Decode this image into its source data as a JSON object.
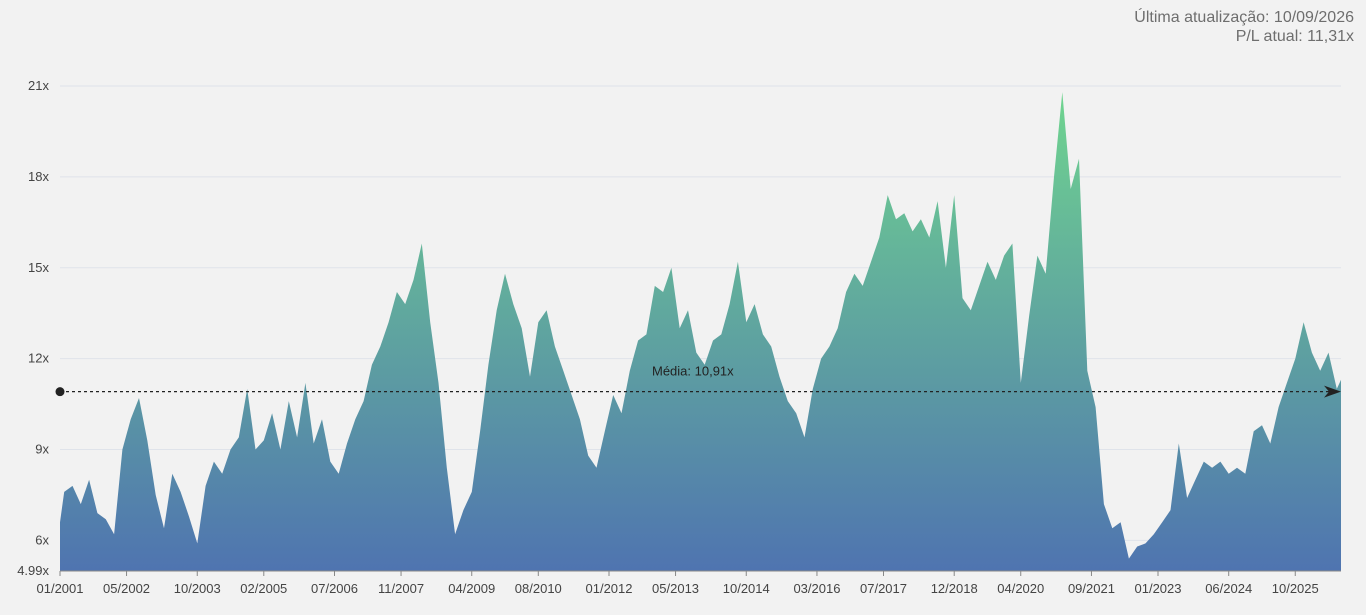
{
  "header": {
    "last_update": "Última atualização: 10/09/2026",
    "current_pl": "P/L atual: 11,31x"
  },
  "colors": {
    "area_top": "#6fd48f",
    "area_bottom": "#4f74b0",
    "grid": "#dfe3ea",
    "average_line": "#222222",
    "background": "#f2f2f2"
  },
  "chart_data": {
    "type": "area",
    "title": "",
    "xlabel": "",
    "ylabel": "",
    "ylim": [
      4.99,
      21.5
    ],
    "y_ticks": [
      {
        "value": 4.99,
        "label": "4.99x"
      },
      {
        "value": 6,
        "label": "6x"
      },
      {
        "value": 9,
        "label": "9x"
      },
      {
        "value": 12,
        "label": "12x"
      },
      {
        "value": 15,
        "label": "15x"
      },
      {
        "value": 18,
        "label": "18x"
      },
      {
        "value": 21,
        "label": "21x"
      }
    ],
    "x_ticks": [
      "01/2001",
      "05/2002",
      "10/2003",
      "02/2005",
      "07/2006",
      "11/2007",
      "04/2009",
      "08/2010",
      "01/2012",
      "05/2013",
      "10/2014",
      "03/2016",
      "07/2017",
      "12/2018",
      "04/2020",
      "09/2021",
      "01/2023",
      "06/2024",
      "10/2025"
    ],
    "x_range": [
      "01/2001",
      "09/2026"
    ],
    "average": {
      "value": 10.91,
      "label": "Média:  10,91x"
    },
    "grid": true,
    "series": [
      {
        "values": [
          [
            "01/2001",
            6.6
          ],
          [
            "02/2001",
            7.6
          ],
          [
            "04/2001",
            7.8
          ],
          [
            "06/2001",
            7.2
          ],
          [
            "08/2001",
            8.0
          ],
          [
            "10/2001",
            6.9
          ],
          [
            "12/2001",
            6.7
          ],
          [
            "02/2002",
            6.2
          ],
          [
            "04/2002",
            9.0
          ],
          [
            "06/2002",
            10.0
          ],
          [
            "08/2002",
            10.7
          ],
          [
            "10/2002",
            9.3
          ],
          [
            "12/2002",
            7.5
          ],
          [
            "02/2003",
            6.4
          ],
          [
            "04/2003",
            8.2
          ],
          [
            "06/2003",
            7.6
          ],
          [
            "08/2003",
            6.8
          ],
          [
            "10/2003",
            5.9
          ],
          [
            "12/2003",
            7.8
          ],
          [
            "02/2004",
            8.6
          ],
          [
            "04/2004",
            8.2
          ],
          [
            "06/2004",
            9.0
          ],
          [
            "08/2004",
            9.4
          ],
          [
            "10/2004",
            11.0
          ],
          [
            "12/2004",
            9.0
          ],
          [
            "02/2005",
            9.3
          ],
          [
            "04/2005",
            10.2
          ],
          [
            "06/2005",
            9.0
          ],
          [
            "08/2005",
            10.6
          ],
          [
            "10/2005",
            9.4
          ],
          [
            "12/2005",
            11.2
          ],
          [
            "02/2006",
            9.2
          ],
          [
            "04/2006",
            10.0
          ],
          [
            "06/2006",
            8.6
          ],
          [
            "08/2006",
            8.2
          ],
          [
            "10/2006",
            9.2
          ],
          [
            "12/2006",
            10.0
          ],
          [
            "02/2007",
            10.6
          ],
          [
            "04/2007",
            11.8
          ],
          [
            "06/2007",
            12.4
          ],
          [
            "08/2007",
            13.2
          ],
          [
            "10/2007",
            14.2
          ],
          [
            "12/2007",
            13.8
          ],
          [
            "02/2008",
            14.6
          ],
          [
            "04/2008",
            15.8
          ],
          [
            "06/2008",
            13.2
          ],
          [
            "08/2008",
            11.2
          ],
          [
            "10/2008",
            8.4
          ],
          [
            "12/2008",
            6.2
          ],
          [
            "02/2009",
            7.0
          ],
          [
            "04/2009",
            7.6
          ],
          [
            "06/2009",
            9.6
          ],
          [
            "08/2009",
            11.8
          ],
          [
            "10/2009",
            13.6
          ],
          [
            "12/2009",
            14.8
          ],
          [
            "02/2010",
            13.8
          ],
          [
            "04/2010",
            13.0
          ],
          [
            "06/2010",
            11.4
          ],
          [
            "08/2010",
            13.2
          ],
          [
            "10/2010",
            13.6
          ],
          [
            "12/2010",
            12.4
          ],
          [
            "02/2011",
            11.6
          ],
          [
            "04/2011",
            10.8
          ],
          [
            "06/2011",
            10.0
          ],
          [
            "08/2011",
            8.8
          ],
          [
            "10/2011",
            8.4
          ],
          [
            "12/2011",
            9.6
          ],
          [
            "02/2012",
            10.8
          ],
          [
            "04/2012",
            10.2
          ],
          [
            "06/2012",
            11.6
          ],
          [
            "08/2012",
            12.6
          ],
          [
            "10/2012",
            12.8
          ],
          [
            "12/2012",
            14.4
          ],
          [
            "02/2013",
            14.2
          ],
          [
            "04/2013",
            15.0
          ],
          [
            "06/2013",
            13.0
          ],
          [
            "08/2013",
            13.6
          ],
          [
            "10/2013",
            12.2
          ],
          [
            "12/2013",
            11.8
          ],
          [
            "02/2014",
            12.6
          ],
          [
            "04/2014",
            12.8
          ],
          [
            "06/2014",
            13.8
          ],
          [
            "08/2014",
            15.2
          ],
          [
            "10/2014",
            13.2
          ],
          [
            "12/2014",
            13.8
          ],
          [
            "02/2015",
            12.8
          ],
          [
            "04/2015",
            12.4
          ],
          [
            "06/2015",
            11.4
          ],
          [
            "08/2015",
            10.6
          ],
          [
            "10/2015",
            10.2
          ],
          [
            "12/2015",
            9.4
          ],
          [
            "02/2016",
            11.0
          ],
          [
            "04/2016",
            12.0
          ],
          [
            "06/2016",
            12.4
          ],
          [
            "08/2016",
            13.0
          ],
          [
            "10/2016",
            14.2
          ],
          [
            "12/2016",
            14.8
          ],
          [
            "02/2017",
            14.4
          ],
          [
            "04/2017",
            15.2
          ],
          [
            "06/2017",
            16.0
          ],
          [
            "08/2017",
            17.4
          ],
          [
            "10/2017",
            16.6
          ],
          [
            "12/2017",
            16.8
          ],
          [
            "02/2018",
            16.2
          ],
          [
            "04/2018",
            16.6
          ],
          [
            "06/2018",
            16.0
          ],
          [
            "08/2018",
            17.2
          ],
          [
            "10/2018",
            15.0
          ],
          [
            "12/2018",
            17.4
          ],
          [
            "02/2019",
            14.0
          ],
          [
            "04/2019",
            13.6
          ],
          [
            "06/2019",
            14.4
          ],
          [
            "08/2019",
            15.2
          ],
          [
            "10/2019",
            14.6
          ],
          [
            "12/2019",
            15.4
          ],
          [
            "02/2020",
            15.8
          ],
          [
            "04/2020",
            11.2
          ],
          [
            "06/2020",
            13.4
          ],
          [
            "08/2020",
            15.4
          ],
          [
            "10/2020",
            14.8
          ],
          [
            "12/2020",
            18.0
          ],
          [
            "02/2021",
            20.8
          ],
          [
            "04/2021",
            17.6
          ],
          [
            "06/2021",
            18.6
          ],
          [
            "08/2021",
            11.6
          ],
          [
            "10/2021",
            10.4
          ],
          [
            "12/2021",
            7.2
          ],
          [
            "02/2022",
            6.4
          ],
          [
            "04/2022",
            6.6
          ],
          [
            "06/2022",
            5.4
          ],
          [
            "08/2022",
            5.8
          ],
          [
            "10/2022",
            5.9
          ],
          [
            "12/2022",
            6.2
          ],
          [
            "02/2023",
            6.6
          ],
          [
            "04/2023",
            7.0
          ],
          [
            "06/2023",
            9.2
          ],
          [
            "08/2023",
            7.4
          ],
          [
            "10/2023",
            8.0
          ],
          [
            "12/2023",
            8.6
          ],
          [
            "02/2024",
            8.4
          ],
          [
            "04/2024",
            8.6
          ],
          [
            "06/2024",
            8.2
          ],
          [
            "08/2024",
            8.4
          ],
          [
            "10/2024",
            8.2
          ],
          [
            "12/2024",
            9.6
          ],
          [
            "02/2025",
            9.8
          ],
          [
            "04/2025",
            9.2
          ],
          [
            "06/2025",
            10.4
          ],
          [
            "08/2025",
            11.2
          ],
          [
            "10/2025",
            12.0
          ],
          [
            "12/2025",
            13.2
          ],
          [
            "02/2026",
            12.2
          ],
          [
            "04/2026",
            11.6
          ],
          [
            "06/2026",
            12.2
          ],
          [
            "08/2026",
            11.0
          ],
          [
            "09/2026",
            11.3
          ]
        ]
      }
    ]
  }
}
